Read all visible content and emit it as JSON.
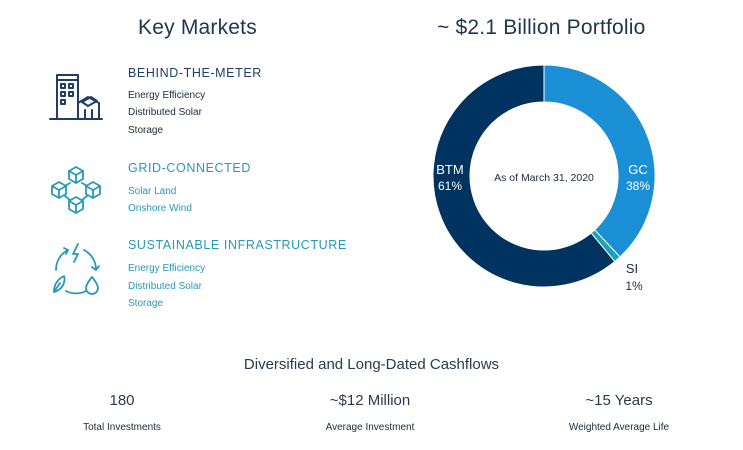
{
  "left_heading": "Key Markets",
  "markets": [
    {
      "title": "BEHIND-THE-METER",
      "items": [
        "Energy Efficiency",
        "Distributed Solar",
        "Storage"
      ],
      "icon": "building-icon"
    },
    {
      "title": "GRID-CONNECTED",
      "items": [
        "Solar Land",
        "Onshore Wind"
      ],
      "icon": "cubes-network-icon"
    },
    {
      "title": "SUSTAINABLE INFRASTRUCTURE",
      "items": [
        "Energy Efficiency",
        "Distributed Solar",
        "Storage"
      ],
      "icon": "sustainability-cycle-icon"
    }
  ],
  "chart_data": {
    "type": "pie",
    "title": "~ $2.1 Billion Portfolio",
    "center_label": "As of March 31, 2020",
    "slices": [
      {
        "label": "GC",
        "value": 38,
        "display": "38%",
        "color": "#1a8fd6"
      },
      {
        "label": "SI",
        "value": 1,
        "display": "1%",
        "color": "#1aa3b3"
      },
      {
        "label": "BTM",
        "value": 61,
        "display": "61%",
        "color": "#00335f"
      }
    ]
  },
  "cashflows": {
    "heading": "Diversified and Long-Dated Cashflows",
    "stats": [
      {
        "value": "180",
        "label": "Total Investments"
      },
      {
        "value": "~$12 Million",
        "label": "Average Investment"
      },
      {
        "value": "~15 Years",
        "label": "Weighted Average Life"
      }
    ]
  },
  "colors": {
    "navy": "#1f3d66",
    "teal": "#2a98b8"
  }
}
